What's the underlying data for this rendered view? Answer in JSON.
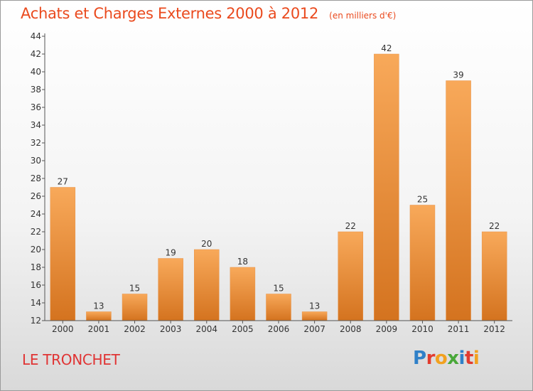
{
  "title": "Achats et Charges Externes 2000 à 2012",
  "subtitle": "(en milliers d'€)",
  "commune": "LE TRONCHET",
  "brand": {
    "text": "Proxiti",
    "letters": [
      {
        "char": "P",
        "color": "#2f80c8"
      },
      {
        "char": "r",
        "color": "#e23b2e"
      },
      {
        "char": "o",
        "color": "#f2a11f"
      },
      {
        "char": "x",
        "color": "#49a839"
      },
      {
        "char": "i",
        "color": "#2f80c8"
      },
      {
        "char": "t",
        "color": "#e23b2e"
      },
      {
        "char": "i",
        "color": "#f2a11f"
      }
    ]
  },
  "colors": {
    "bar_top": "#f8a95a",
    "bar_bottom": "#d4731f",
    "title": "#ea4a1e",
    "commune": "#e03434"
  },
  "chart_data": {
    "type": "bar",
    "categories": [
      "2000",
      "2001",
      "2002",
      "2003",
      "2004",
      "2005",
      "2006",
      "2007",
      "2008",
      "2009",
      "2010",
      "2011",
      "2012"
    ],
    "values": [
      27,
      13,
      15,
      19,
      20,
      18,
      15,
      13,
      22,
      42,
      25,
      39,
      22
    ],
    "title": "Achats et Charges Externes 2000 à 2012",
    "subtitle": "(en milliers d'€)",
    "ylim": [
      12,
      44
    ],
    "yticks": [
      12,
      14,
      16,
      18,
      20,
      22,
      24,
      26,
      28,
      30,
      32,
      34,
      36,
      38,
      40,
      42,
      44
    ],
    "grid": false,
    "legend": "none"
  }
}
